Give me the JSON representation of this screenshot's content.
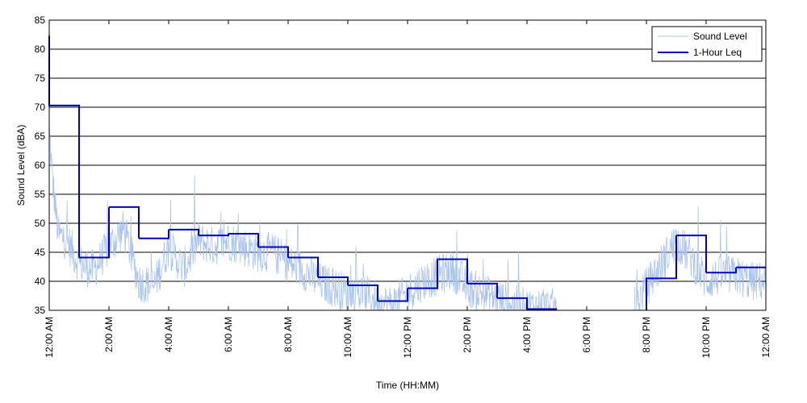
{
  "chart_data": {
    "type": "line",
    "title": "",
    "xlabel": "Time (HH:MM)",
    "ylabel": "Sound Level (dBA)",
    "xlim": [
      0,
      24
    ],
    "ylim": [
      35,
      85
    ],
    "y_ticks": [
      35,
      40,
      45,
      50,
      55,
      60,
      65,
      70,
      75,
      80,
      85
    ],
    "x_ticks": [
      0,
      2,
      4,
      6,
      8,
      10,
      12,
      14,
      16,
      18,
      20,
      22,
      24
    ],
    "x_tick_labels": [
      "12:00 AM",
      "2:00 AM",
      "4:00 AM",
      "6:00 AM",
      "8:00 AM",
      "10:00 AM",
      "12:00 PM",
      "2:00 PM",
      "4:00 PM",
      "6:00 PM",
      "8:00 PM",
      "10:00 PM",
      "12:00 AM"
    ],
    "grid": "horizontal",
    "legend_position": "top-right",
    "series": [
      {
        "name": "Sound Level",
        "color": "#a9c3f0",
        "type": "noisy-line",
        "gap_hours": [
          17,
          19.6
        ],
        "base_profile": [
          [
            0,
            66
          ],
          [
            0.1,
            58
          ],
          [
            0.3,
            48
          ],
          [
            0.6,
            47
          ],
          [
            1,
            43
          ],
          [
            1.5,
            42
          ],
          [
            2,
            46
          ],
          [
            2.5,
            49
          ],
          [
            3,
            40
          ],
          [
            3.5,
            39
          ],
          [
            4,
            46
          ],
          [
            4.5,
            42
          ],
          [
            5,
            47
          ],
          [
            5.5,
            46
          ],
          [
            6,
            47
          ],
          [
            6.5,
            46
          ],
          [
            7,
            45
          ],
          [
            7.5,
            45
          ],
          [
            8,
            43
          ],
          [
            8.5,
            42
          ],
          [
            9,
            40
          ],
          [
            9.5,
            39
          ],
          [
            10,
            38
          ],
          [
            10.5,
            38
          ],
          [
            11,
            36.5
          ],
          [
            11.5,
            36
          ],
          [
            12,
            38
          ],
          [
            12.5,
            40
          ],
          [
            13,
            41
          ],
          [
            13.5,
            42
          ],
          [
            14,
            39
          ],
          [
            14.5,
            38
          ],
          [
            15,
            37
          ],
          [
            15.5,
            36
          ],
          [
            16,
            35.5
          ],
          [
            16.5,
            35.5
          ],
          [
            17,
            35.2
          ],
          [
            19.6,
            35.5
          ],
          [
            20,
            39
          ],
          [
            20.5,
            43
          ],
          [
            21,
            47
          ],
          [
            21.5,
            44
          ],
          [
            22,
            40
          ],
          [
            22.5,
            41
          ],
          [
            23,
            41
          ],
          [
            23.5,
            40
          ],
          [
            24,
            40
          ]
        ]
      },
      {
        "name": "1-Hour Leq",
        "color": "#0000c0",
        "type": "step",
        "hours": [
          0,
          1,
          2,
          3,
          4,
          5,
          6,
          7,
          8,
          9,
          10,
          11,
          12,
          13,
          14,
          15,
          16,
          20,
          21,
          22,
          23
        ],
        "values": [
          70.3,
          44.1,
          52.8,
          47.4,
          48.9,
          47.9,
          48.2,
          45.9,
          44.1,
          40.7,
          39.3,
          36.6,
          38.8,
          43.8,
          39.6,
          37.1,
          35.2,
          40.5,
          47.9,
          41.5,
          42.4
        ]
      }
    ]
  }
}
